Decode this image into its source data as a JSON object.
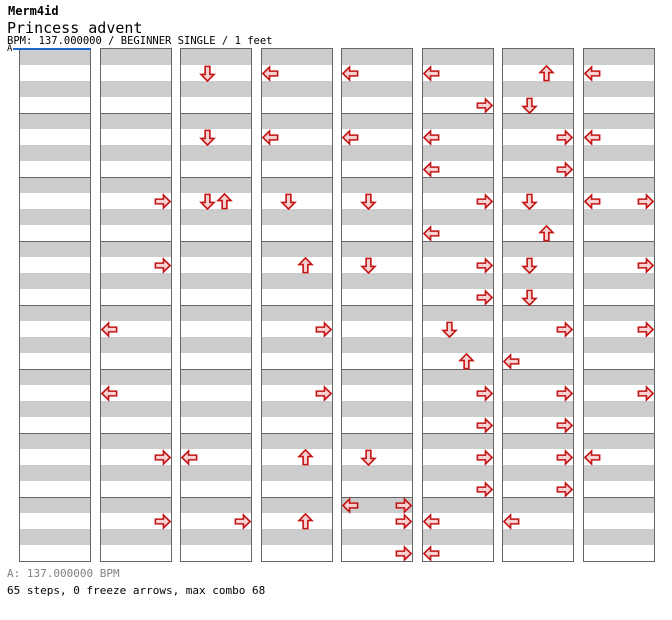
{
  "header": {
    "artist": "Merm4id",
    "title": "Princess advent",
    "info": "BPM: 137.000000 / BEGINNER SINGLE / 1 feet"
  },
  "marker": {
    "label": "A"
  },
  "footer": {
    "bpm_line": "A: 137.000000 BPM",
    "stats_line": "65 steps, 0 freeze arrows, max combo 68"
  },
  "colors": {
    "beat_gray": "#cccccc",
    "beat_white": "#ffffff",
    "grid_line": "#666666",
    "marker_blue": "#2068c8",
    "arrow_fill": "#f8d2d2",
    "arrow_stroke": "#c41414",
    "footer_gray": "#808080"
  },
  "chart": {
    "panels": 8,
    "measures_per_panel": 8,
    "beats_per_measure": 4,
    "lanes": [
      "left",
      "down",
      "up",
      "right"
    ],
    "notes": [
      {
        "m": 11,
        "b": 2,
        "d": "right"
      },
      {
        "m": 12,
        "b": 2,
        "d": "right"
      },
      {
        "m": 13,
        "b": 2,
        "d": "left"
      },
      {
        "m": 14,
        "b": 2,
        "d": "left"
      },
      {
        "m": 15,
        "b": 2,
        "d": "right"
      },
      {
        "m": 16,
        "b": 2,
        "d": "right"
      },
      {
        "m": 17,
        "b": 2,
        "d": "down"
      },
      {
        "m": 18,
        "b": 2,
        "d": "down"
      },
      {
        "m": 19,
        "b": 2,
        "d": "down"
      },
      {
        "m": 19,
        "b": 2,
        "d": "up"
      },
      {
        "m": 23,
        "b": 2,
        "d": "left"
      },
      {
        "m": 24,
        "b": 2,
        "d": "right"
      },
      {
        "m": 25,
        "b": 2,
        "d": "left"
      },
      {
        "m": 26,
        "b": 2,
        "d": "left"
      },
      {
        "m": 27,
        "b": 2,
        "d": "down"
      },
      {
        "m": 28,
        "b": 2,
        "d": "up"
      },
      {
        "m": 29,
        "b": 2,
        "d": "right"
      },
      {
        "m": 30,
        "b": 2,
        "d": "right"
      },
      {
        "m": 31,
        "b": 2,
        "d": "up"
      },
      {
        "m": 32,
        "b": 2,
        "d": "up"
      },
      {
        "m": 33,
        "b": 2,
        "d": "left"
      },
      {
        "m": 34,
        "b": 2,
        "d": "left"
      },
      {
        "m": 35,
        "b": 2,
        "d": "down"
      },
      {
        "m": 36,
        "b": 2,
        "d": "down"
      },
      {
        "m": 39,
        "b": 2,
        "d": "down"
      },
      {
        "m": 40,
        "b": 1,
        "d": "left"
      },
      {
        "m": 40,
        "b": 1,
        "d": "right"
      },
      {
        "m": 40,
        "b": 2,
        "d": "right"
      },
      {
        "m": 40,
        "b": 4,
        "d": "right"
      },
      {
        "m": 41,
        "b": 2,
        "d": "left"
      },
      {
        "m": 41,
        "b": 4,
        "d": "right"
      },
      {
        "m": 42,
        "b": 2,
        "d": "left"
      },
      {
        "m": 42,
        "b": 4,
        "d": "left"
      },
      {
        "m": 43,
        "b": 2,
        "d": "right"
      },
      {
        "m": 43,
        "b": 4,
        "d": "left"
      },
      {
        "m": 44,
        "b": 2,
        "d": "right"
      },
      {
        "m": 44,
        "b": 4,
        "d": "right"
      },
      {
        "m": 45,
        "b": 2,
        "d": "down"
      },
      {
        "m": 45,
        "b": 4,
        "d": "up"
      },
      {
        "m": 46,
        "b": 2,
        "d": "right"
      },
      {
        "m": 46,
        "b": 4,
        "d": "right"
      },
      {
        "m": 47,
        "b": 2,
        "d": "right"
      },
      {
        "m": 47,
        "b": 4,
        "d": "right"
      },
      {
        "m": 48,
        "b": 2,
        "d": "left"
      },
      {
        "m": 48,
        "b": 4,
        "d": "left"
      },
      {
        "m": 49,
        "b": 2,
        "d": "up"
      },
      {
        "m": 49,
        "b": 4,
        "d": "down"
      },
      {
        "m": 50,
        "b": 2,
        "d": "right"
      },
      {
        "m": 50,
        "b": 4,
        "d": "right"
      },
      {
        "m": 51,
        "b": 2,
        "d": "down"
      },
      {
        "m": 51,
        "b": 4,
        "d": "up"
      },
      {
        "m": 52,
        "b": 2,
        "d": "down"
      },
      {
        "m": 52,
        "b": 4,
        "d": "down"
      },
      {
        "m": 53,
        "b": 2,
        "d": "right"
      },
      {
        "m": 53,
        "b": 4,
        "d": "left"
      },
      {
        "m": 54,
        "b": 2,
        "d": "right"
      },
      {
        "m": 54,
        "b": 4,
        "d": "right"
      },
      {
        "m": 55,
        "b": 2,
        "d": "right"
      },
      {
        "m": 55,
        "b": 4,
        "d": "right"
      },
      {
        "m": 56,
        "b": 2,
        "d": "left"
      },
      {
        "m": 57,
        "b": 2,
        "d": "left"
      },
      {
        "m": 58,
        "b": 2,
        "d": "left"
      },
      {
        "m": 59,
        "b": 2,
        "d": "left"
      },
      {
        "m": 59,
        "b": 2,
        "d": "right"
      },
      {
        "m": 60,
        "b": 2,
        "d": "right"
      },
      {
        "m": 61,
        "b": 2,
        "d": "right"
      },
      {
        "m": 62,
        "b": 2,
        "d": "right"
      },
      {
        "m": 63,
        "b": 2,
        "d": "left"
      }
    ]
  }
}
